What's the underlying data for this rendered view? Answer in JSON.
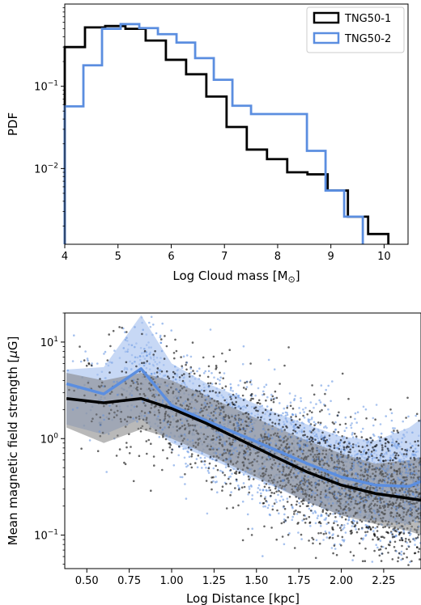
{
  "chart_data": [
    {
      "type": "step-histogram",
      "xlabel": "Log Cloud mass [M",
      "xlabel_sub": "⊙",
      "xlabel_end": "]",
      "ylabel": "PDF",
      "xlim": [
        4.0,
        10.45
      ],
      "ylim": [
        0.0012,
        1.0
      ],
      "yscale": "log",
      "x_ticks": [
        4,
        5,
        6,
        7,
        8,
        9,
        10
      ],
      "x_tick_labels": [
        "4",
        "5",
        "6",
        "7",
        "8",
        "9",
        "10"
      ],
      "y_ticks": [
        0.01,
        0.1
      ],
      "y_tick_labels": [
        {
          "base": "10",
          "exp": "−2"
        },
        {
          "base": "10",
          "exp": "−1"
        }
      ],
      "legend_position": "top-right",
      "series": [
        {
          "name": "TNG50-1",
          "color": "#000000",
          "bin_edges": [
            4.0,
            4.38,
            4.76,
            5.14,
            5.52,
            5.9,
            6.28,
            6.66,
            7.04,
            7.42,
            7.8,
            8.18,
            8.56,
            8.94,
            9.32,
            9.7,
            10.08
          ],
          "values": [
            0.3,
            0.52,
            0.54,
            0.5,
            0.36,
            0.21,
            0.14,
            0.075,
            0.032,
            0.017,
            0.013,
            0.009,
            0.0085,
            0.0054,
            0.0026,
            0.0016
          ]
        },
        {
          "name": "TNG50-2",
          "color": "#5b8ee0",
          "bin_edges": [
            4.0,
            4.35,
            4.7,
            5.05,
            5.4,
            5.75,
            6.1,
            6.45,
            6.8,
            7.15,
            7.5,
            7.85,
            8.2,
            8.55,
            8.9,
            9.25,
            9.6
          ],
          "values": [
            0.057,
            0.18,
            0.5,
            0.57,
            0.51,
            0.43,
            0.34,
            0.22,
            0.12,
            0.058,
            0.046,
            0.046,
            0.046,
            0.0164,
            0.0054,
            0.0026
          ]
        }
      ]
    },
    {
      "type": "scatter",
      "xlabel": "Log Distance [kpc]",
      "ylabel": "Mean magnetic field strength [",
      "ylabel_mu": "μ",
      "ylabel_end": "G]",
      "xlim": [
        0.37,
        2.47
      ],
      "ylim": [
        0.045,
        20
      ],
      "yscale": "log",
      "x_ticks": [
        0.5,
        0.75,
        1.0,
        1.25,
        1.5,
        1.75,
        2.0,
        2.25
      ],
      "x_tick_labels": [
        "0.50",
        "0.75",
        "1.00",
        "1.25",
        "1.50",
        "1.75",
        "2.00",
        "2.25"
      ],
      "y_ticks": [
        0.1,
        1,
        10
      ],
      "y_tick_labels": [
        {
          "base": "10",
          "exp": "−1"
        },
        {
          "base": "10",
          "exp": "0"
        },
        {
          "base": "10",
          "exp": "1"
        }
      ],
      "series": [
        {
          "name": "TNG50-1",
          "color": "#000000",
          "median": {
            "x": [
              0.38,
              0.6,
              0.82,
              1.0,
              1.2,
              1.4,
              1.6,
              1.8,
              2.0,
              2.2,
              2.4,
              2.47
            ],
            "y": [
              2.6,
              2.35,
              2.6,
              2.05,
              1.45,
              0.98,
              0.66,
              0.45,
              0.33,
              0.27,
              0.24,
              0.23
            ]
          },
          "band_low": [
            1.3,
            0.9,
            1.25,
            1.0,
            0.7,
            0.48,
            0.33,
            0.22,
            0.16,
            0.13,
            0.11,
            0.1
          ],
          "band_high": [
            4.8,
            4.0,
            4.8,
            4.0,
            2.8,
            1.95,
            1.35,
            0.95,
            0.7,
            0.55,
            0.6,
            0.65
          ],
          "band_color": "#808080"
        },
        {
          "name": "TNG50-2",
          "color": "#5b8ee0",
          "median": {
            "x": [
              0.38,
              0.6,
              0.82,
              1.0,
              1.2,
              1.4,
              1.6,
              1.8,
              2.0,
              2.2,
              2.4,
              2.47
            ],
            "y": [
              3.7,
              2.9,
              5.3,
              2.2,
              1.55,
              1.1,
              0.78,
              0.55,
              0.4,
              0.33,
              0.32,
              0.36
            ]
          },
          "band_low": [
            1.4,
            1.1,
            1.6,
            0.9,
            0.65,
            0.45,
            0.32,
            0.22,
            0.16,
            0.14,
            0.13,
            0.16
          ],
          "band_high": [
            5.2,
            5.5,
            19.0,
            6.0,
            3.8,
            2.7,
            1.9,
            1.4,
            1.05,
            0.95,
            1.3,
            1.6
          ],
          "band_color": "#a9c3ef"
        }
      ]
    }
  ]
}
